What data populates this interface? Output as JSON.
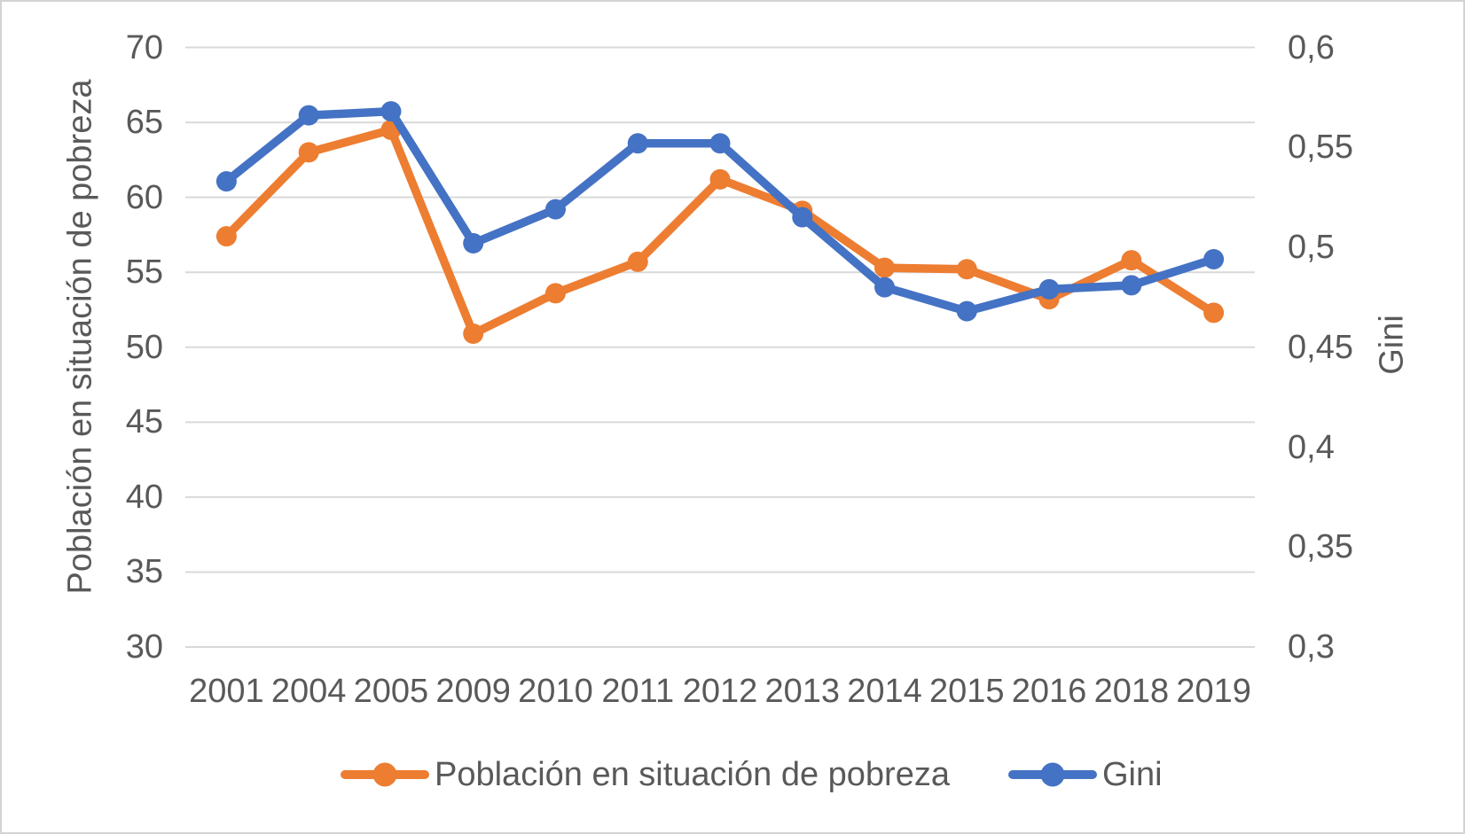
{
  "chart_data": {
    "type": "line",
    "title": "",
    "categories": [
      "2001",
      "2004",
      "2005",
      "2009",
      "2010",
      "2011",
      "2012",
      "2013",
      "2014",
      "2015",
      "2016",
      "2018",
      "2019"
    ],
    "series": [
      {
        "name": "Población en situación de pobreza",
        "axis": "left",
        "color": "#ED7D31",
        "values": [
          57.4,
          63.0,
          64.5,
          50.9,
          53.6,
          55.7,
          61.2,
          59.1,
          55.3,
          55.2,
          53.2,
          55.8,
          52.3
        ]
      },
      {
        "name": "Gini",
        "axis": "right",
        "color": "#4472C4",
        "values": [
          0.533,
          0.566,
          0.568,
          0.502,
          0.519,
          0.552,
          0.552,
          0.515,
          0.48,
          0.468,
          0.479,
          0.481,
          0.494
        ]
      }
    ],
    "ylabel_left": "Población en situación de pobreza",
    "ylabel_right": "Gini",
    "left_axis": {
      "min": 30,
      "max": 70,
      "step": 5,
      "tick_labels": [
        "70",
        "65",
        "60",
        "55",
        "50",
        "45",
        "40",
        "35",
        "30"
      ]
    },
    "right_axis": {
      "min": 0.3,
      "max": 0.6,
      "step": 0.05,
      "tick_labels": [
        "0,6",
        "0,55",
        "0,5",
        "0,45",
        "0,4",
        "0,35",
        "0,3"
      ]
    },
    "grid": "horizontal",
    "legend_position": "bottom",
    "colors": {
      "grid": "#D9D9D9",
      "text": "#595959",
      "background": "#FFFFFF",
      "border": "#D3D3D3"
    }
  }
}
